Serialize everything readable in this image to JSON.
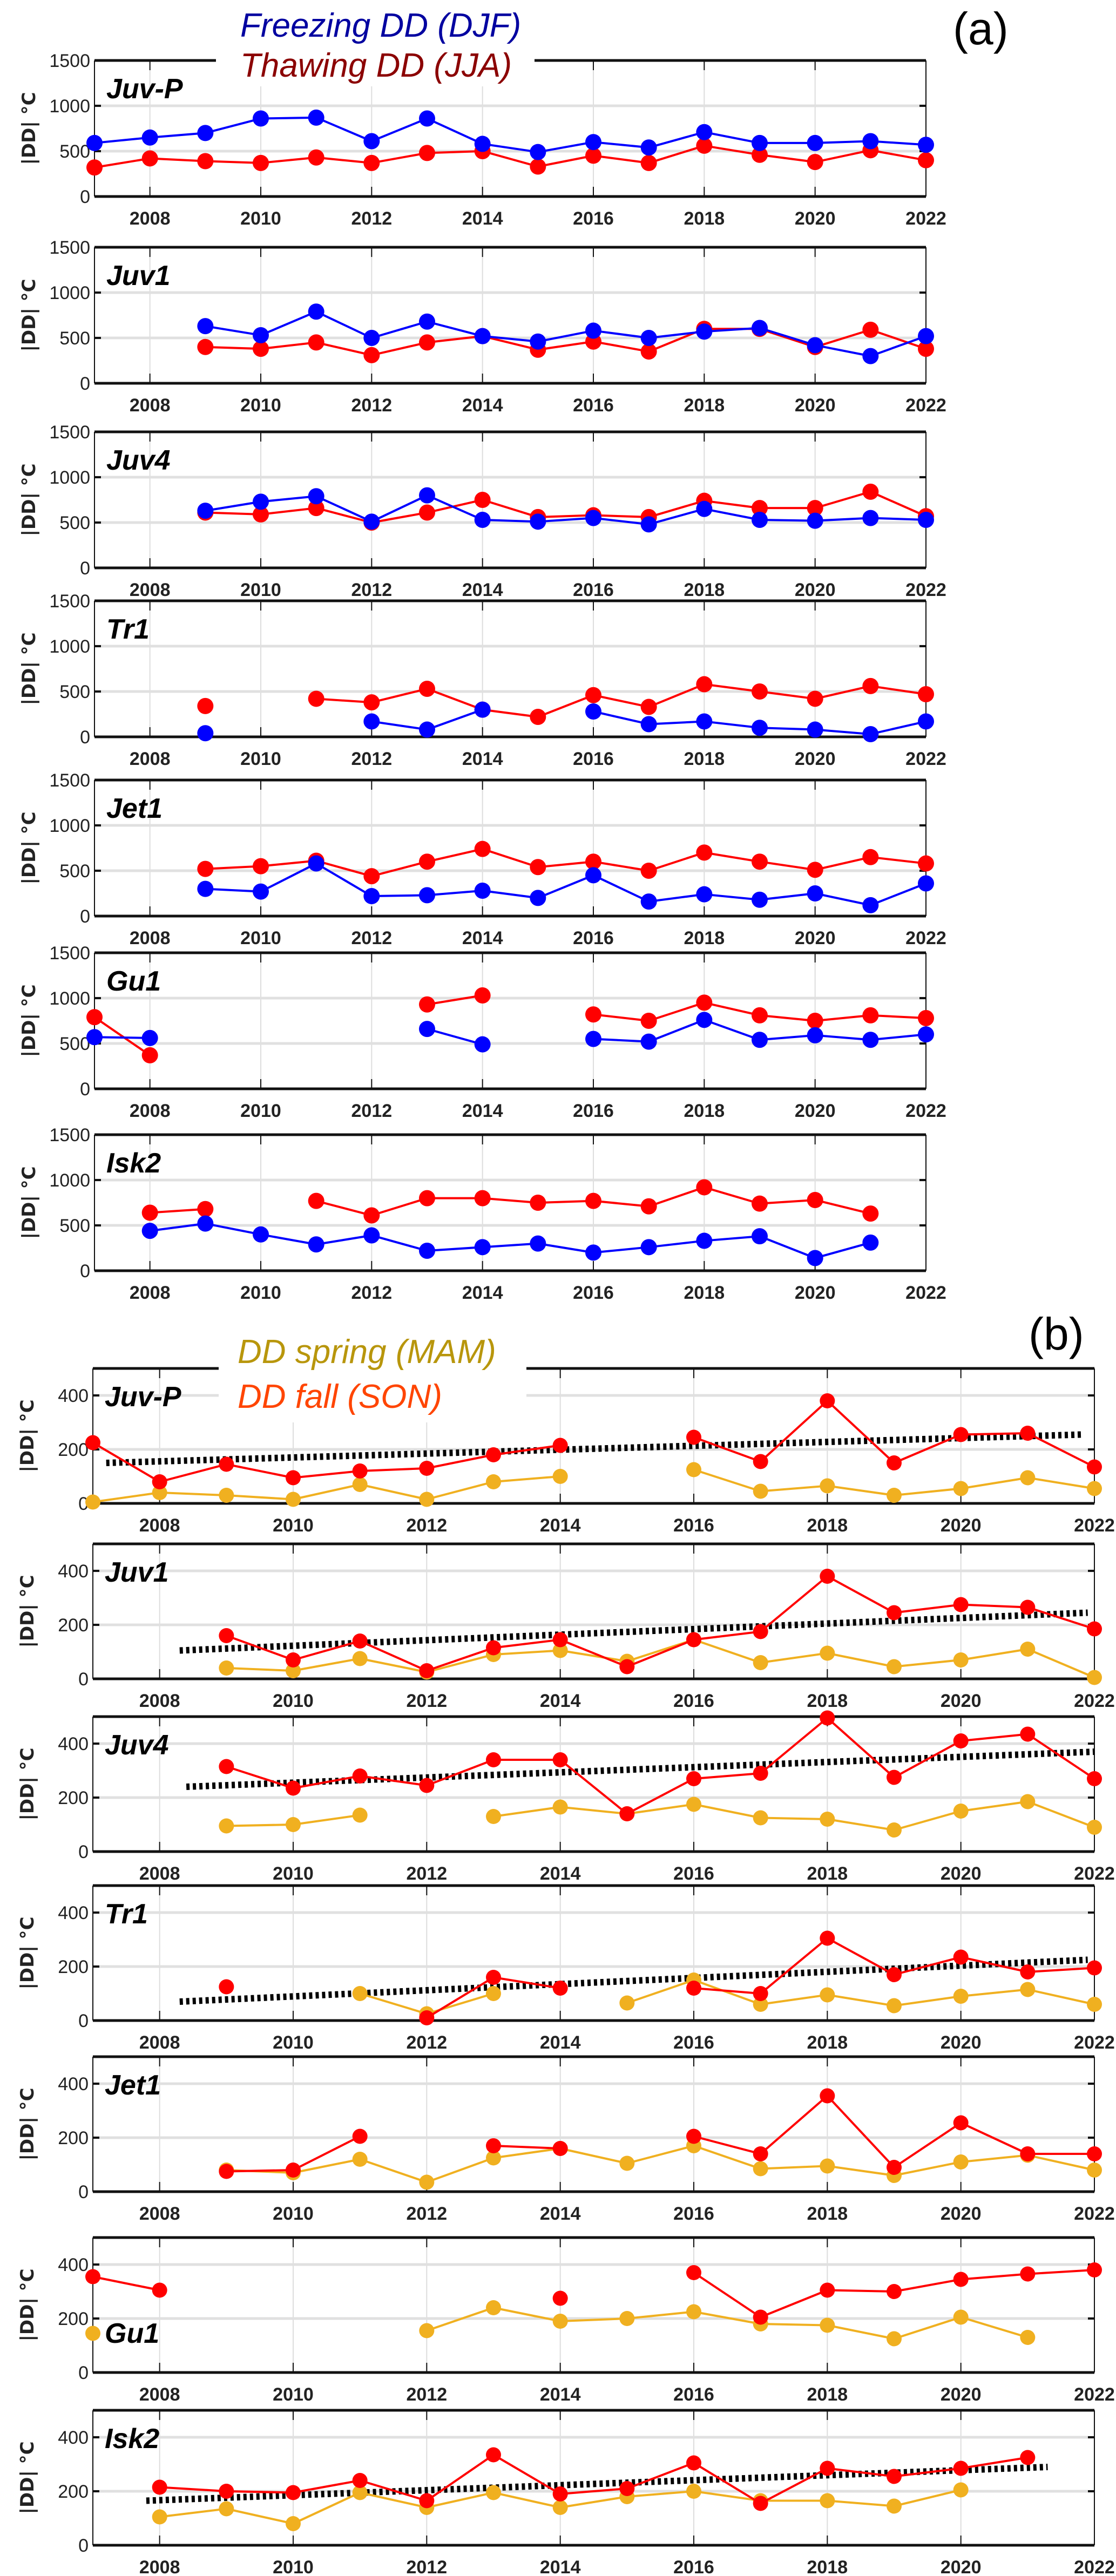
{
  "chart_data": [
    {
      "panel": "(a)",
      "type": "line",
      "legend": [
        {
          "name": "Freezing DD (DJF)",
          "color": "#0000a0"
        },
        {
          "name": "Thawing DD (JJA)",
          "color": "#8b0000"
        }
      ],
      "legend_placement": "top-center",
      "ylabel": "|DD| °C",
      "xlabel": "",
      "xlim": [
        2007,
        2022
      ],
      "ylim": [
        0,
        1500
      ],
      "yticks": [
        0,
        500,
        1000,
        1500
      ],
      "xticks": [
        2008,
        2010,
        2012,
        2014,
        2016,
        2018,
        2020,
        2022
      ],
      "grid": true,
      "series_colors": {
        "freezing": "#0000ff",
        "thawing": "#ff0000"
      },
      "subplots": [
        {
          "site": "Juv-P",
          "x": [
            2007,
            2008,
            2009,
            2010,
            2011,
            2012,
            2013,
            2014,
            2015,
            2016,
            2017,
            2018,
            2019,
            2020,
            2021,
            2022
          ],
          "freezing": [
            590,
            650,
            700,
            860,
            870,
            610,
            860,
            580,
            490,
            600,
            540,
            710,
            590,
            590,
            610,
            570
          ],
          "thawing": [
            320,
            420,
            390,
            370,
            430,
            370,
            480,
            500,
            330,
            450,
            370,
            560,
            460,
            380,
            510,
            400
          ]
        },
        {
          "site": "Juv1",
          "x": [
            2007,
            2008,
            2009,
            2010,
            2011,
            2012,
            2013,
            2014,
            2015,
            2016,
            2017,
            2018,
            2019,
            2020,
            2021,
            2022
          ],
          "freezing": [
            null,
            null,
            630,
            530,
            790,
            500,
            680,
            520,
            460,
            580,
            500,
            570,
            610,
            420,
            300,
            520
          ],
          "thawing": [
            null,
            null,
            400,
            380,
            450,
            310,
            450,
            520,
            370,
            460,
            350,
            600,
            600,
            400,
            590,
            380
          ]
        },
        {
          "site": "Juv4",
          "x": [
            2007,
            2008,
            2009,
            2010,
            2011,
            2012,
            2013,
            2014,
            2015,
            2016,
            2017,
            2018,
            2019,
            2020,
            2021,
            2022
          ],
          "freezing": [
            null,
            null,
            630,
            730,
            790,
            510,
            800,
            530,
            510,
            550,
            480,
            650,
            530,
            520,
            550,
            530
          ],
          "thawing": [
            null,
            null,
            610,
            590,
            660,
            500,
            610,
            750,
            560,
            580,
            560,
            740,
            660,
            660,
            840,
            570
          ]
        },
        {
          "site": "Tr1",
          "x": [
            2007,
            2008,
            2009,
            2010,
            2011,
            2012,
            2013,
            2014,
            2015,
            2016,
            2017,
            2018,
            2019,
            2020,
            2021,
            2022
          ],
          "freezing": [
            null,
            null,
            40,
            null,
            null,
            170,
            80,
            300,
            null,
            280,
            140,
            170,
            100,
            80,
            30,
            170
          ],
          "thawing": [
            null,
            null,
            340,
            null,
            420,
            380,
            530,
            300,
            220,
            460,
            330,
            580,
            500,
            420,
            560,
            470
          ]
        },
        {
          "site": "Jet1",
          "x": [
            2007,
            2008,
            2009,
            2010,
            2011,
            2012,
            2013,
            2014,
            2015,
            2016,
            2017,
            2018,
            2019,
            2020,
            2021,
            2022
          ],
          "freezing": [
            null,
            null,
            300,
            270,
            580,
            220,
            230,
            280,
            200,
            450,
            160,
            240,
            180,
            250,
            120,
            360
          ],
          "thawing": [
            null,
            null,
            520,
            550,
            610,
            440,
            600,
            740,
            540,
            600,
            500,
            700,
            600,
            510,
            650,
            580
          ]
        },
        {
          "site": "Gu1",
          "x": [
            2007,
            2008,
            2009,
            2010,
            2011,
            2012,
            2013,
            2014,
            2015,
            2016,
            2017,
            2018,
            2019,
            2020,
            2021,
            2022
          ],
          "freezing": [
            570,
            560,
            null,
            null,
            null,
            null,
            660,
            490,
            null,
            550,
            520,
            760,
            540,
            590,
            540,
            600
          ],
          "thawing": [
            790,
            370,
            null,
            null,
            null,
            null,
            930,
            1030,
            null,
            820,
            750,
            950,
            810,
            750,
            810,
            780
          ]
        },
        {
          "site": "Isk2",
          "x": [
            2007,
            2008,
            2009,
            2010,
            2011,
            2012,
            2013,
            2014,
            2015,
            2016,
            2017,
            2018,
            2019,
            2020,
            2021,
            2022
          ],
          "freezing": [
            null,
            440,
            520,
            400,
            290,
            390,
            220,
            260,
            300,
            200,
            260,
            330,
            380,
            140,
            310,
            null
          ],
          "thawing": [
            null,
            640,
            680,
            null,
            770,
            610,
            800,
            800,
            750,
            770,
            710,
            920,
            740,
            780,
            630,
            null
          ]
        }
      ]
    },
    {
      "panel": "(b)",
      "type": "line",
      "legend": [
        {
          "name": "DD spring (MAM)",
          "color": "#b8960c"
        },
        {
          "name": "DD fall (SON)",
          "color": "#ff4500"
        }
      ],
      "legend_placement": "top-center",
      "ylabel": "|DD| °C",
      "xlabel": "",
      "xlim": [
        2007,
        2022
      ],
      "ylim": [
        0,
        500
      ],
      "yticks": [
        0,
        200,
        400
      ],
      "xticks": [
        2008,
        2010,
        2012,
        2014,
        2016,
        2018,
        2020,
        2022
      ],
      "grid": true,
      "series_colors": {
        "spring": "#f0b020",
        "fall": "#ff0000",
        "trend": "#000000"
      },
      "subplots": [
        {
          "site": "Juv-P",
          "x": [
            2007,
            2008,
            2009,
            2010,
            2011,
            2012,
            2013,
            2014,
            2015,
            2016,
            2017,
            2018,
            2019,
            2020,
            2021,
            2022
          ],
          "spring": [
            5,
            40,
            30,
            15,
            70,
            15,
            80,
            100,
            null,
            125,
            45,
            65,
            30,
            55,
            95,
            55
          ],
          "fall": [
            225,
            80,
            145,
            95,
            120,
            130,
            180,
            215,
            null,
            245,
            155,
            380,
            150,
            255,
            260,
            135
          ],
          "trend": {
            "x": [
              2007.2,
              2021.8
            ],
            "y": [
              150,
              255
            ]
          }
        },
        {
          "site": "Juv1",
          "x": [
            2007,
            2008,
            2009,
            2010,
            2011,
            2012,
            2013,
            2014,
            2015,
            2016,
            2017,
            2018,
            2019,
            2020,
            2021,
            2022
          ],
          "spring": [
            null,
            null,
            40,
            30,
            75,
            25,
            90,
            105,
            65,
            145,
            60,
            95,
            45,
            70,
            110,
            5
          ],
          "fall": [
            null,
            null,
            160,
            70,
            140,
            30,
            115,
            145,
            45,
            145,
            175,
            380,
            245,
            275,
            265,
            185
          ],
          "trend": {
            "x": [
              2008.3,
              2021.9
            ],
            "y": [
              105,
              245
            ]
          }
        },
        {
          "site": "Juv4",
          "x": [
            2007,
            2008,
            2009,
            2010,
            2011,
            2012,
            2013,
            2014,
            2015,
            2016,
            2017,
            2018,
            2019,
            2020,
            2021,
            2022
          ],
          "spring": [
            null,
            null,
            95,
            100,
            135,
            null,
            130,
            165,
            140,
            175,
            125,
            120,
            80,
            150,
            185,
            90
          ],
          "fall": [
            null,
            null,
            315,
            235,
            280,
            245,
            340,
            340,
            140,
            270,
            290,
            495,
            275,
            410,
            435,
            270
          ],
          "trend": {
            "x": [
              2008.4,
              2022
            ],
            "y": [
              240,
              370
            ]
          }
        },
        {
          "site": "Tr1",
          "x": [
            2007,
            2008,
            2009,
            2010,
            2011,
            2012,
            2013,
            2014,
            2015,
            2016,
            2017,
            2018,
            2019,
            2020,
            2021,
            2022
          ],
          "spring": [
            null,
            null,
            null,
            null,
            100,
            25,
            100,
            null,
            65,
            150,
            60,
            95,
            55,
            90,
            115,
            60
          ],
          "fall": [
            null,
            null,
            125,
            null,
            null,
            10,
            160,
            120,
            null,
            120,
            100,
            305,
            170,
            235,
            180,
            195
          ],
          "trend": {
            "x": [
              2008.3,
              2021.9
            ],
            "y": [
              70,
              225
            ]
          }
        },
        {
          "site": "Jet1",
          "x": [
            2007,
            2008,
            2009,
            2010,
            2011,
            2012,
            2013,
            2014,
            2015,
            2016,
            2017,
            2018,
            2019,
            2020,
            2021,
            2022
          ],
          "spring": [
            null,
            null,
            80,
            70,
            120,
            35,
            125,
            160,
            105,
            170,
            85,
            95,
            60,
            110,
            135,
            80
          ],
          "fall": [
            null,
            null,
            75,
            80,
            205,
            null,
            170,
            160,
            null,
            205,
            140,
            355,
            90,
            255,
            140,
            140
          ],
          "trend": null
        },
        {
          "site": "Gu1",
          "x": [
            2007,
            2008,
            2009,
            2010,
            2011,
            2012,
            2013,
            2014,
            2015,
            2016,
            2017,
            2018,
            2019,
            2020,
            2021,
            2022
          ],
          "spring": [
            145,
            null,
            null,
            null,
            null,
            155,
            240,
            190,
            200,
            225,
            180,
            175,
            125,
            205,
            130,
            null
          ],
          "fall": [
            355,
            305,
            null,
            null,
            null,
            null,
            null,
            275,
            null,
            370,
            205,
            305,
            300,
            345,
            365,
            380
          ],
          "trend": null
        },
        {
          "site": "Isk2",
          "x": [
            2007,
            2008,
            2009,
            2010,
            2011,
            2012,
            2013,
            2014,
            2015,
            2016,
            2017,
            2018,
            2019,
            2020,
            2021,
            2022
          ],
          "spring": [
            null,
            105,
            135,
            80,
            195,
            140,
            195,
            140,
            180,
            200,
            165,
            165,
            145,
            205,
            null,
            null
          ],
          "fall": [
            null,
            215,
            200,
            195,
            240,
            165,
            335,
            190,
            210,
            305,
            155,
            285,
            255,
            285,
            325,
            null
          ],
          "trend": {
            "x": [
              2007.8,
              2021.3
            ],
            "y": [
              165,
              290
            ]
          }
        }
      ]
    }
  ],
  "labels": {
    "panel_a": "(a)",
    "panel_b": "(b)",
    "legend_a_freezing": "Freezing DD (DJF)",
    "legend_a_thawing": "Thawing DD (JJA)",
    "legend_b_spring": "DD spring (MAM)",
    "legend_b_fall": "DD fall (SON)",
    "ylabel": "|DD| °C"
  }
}
